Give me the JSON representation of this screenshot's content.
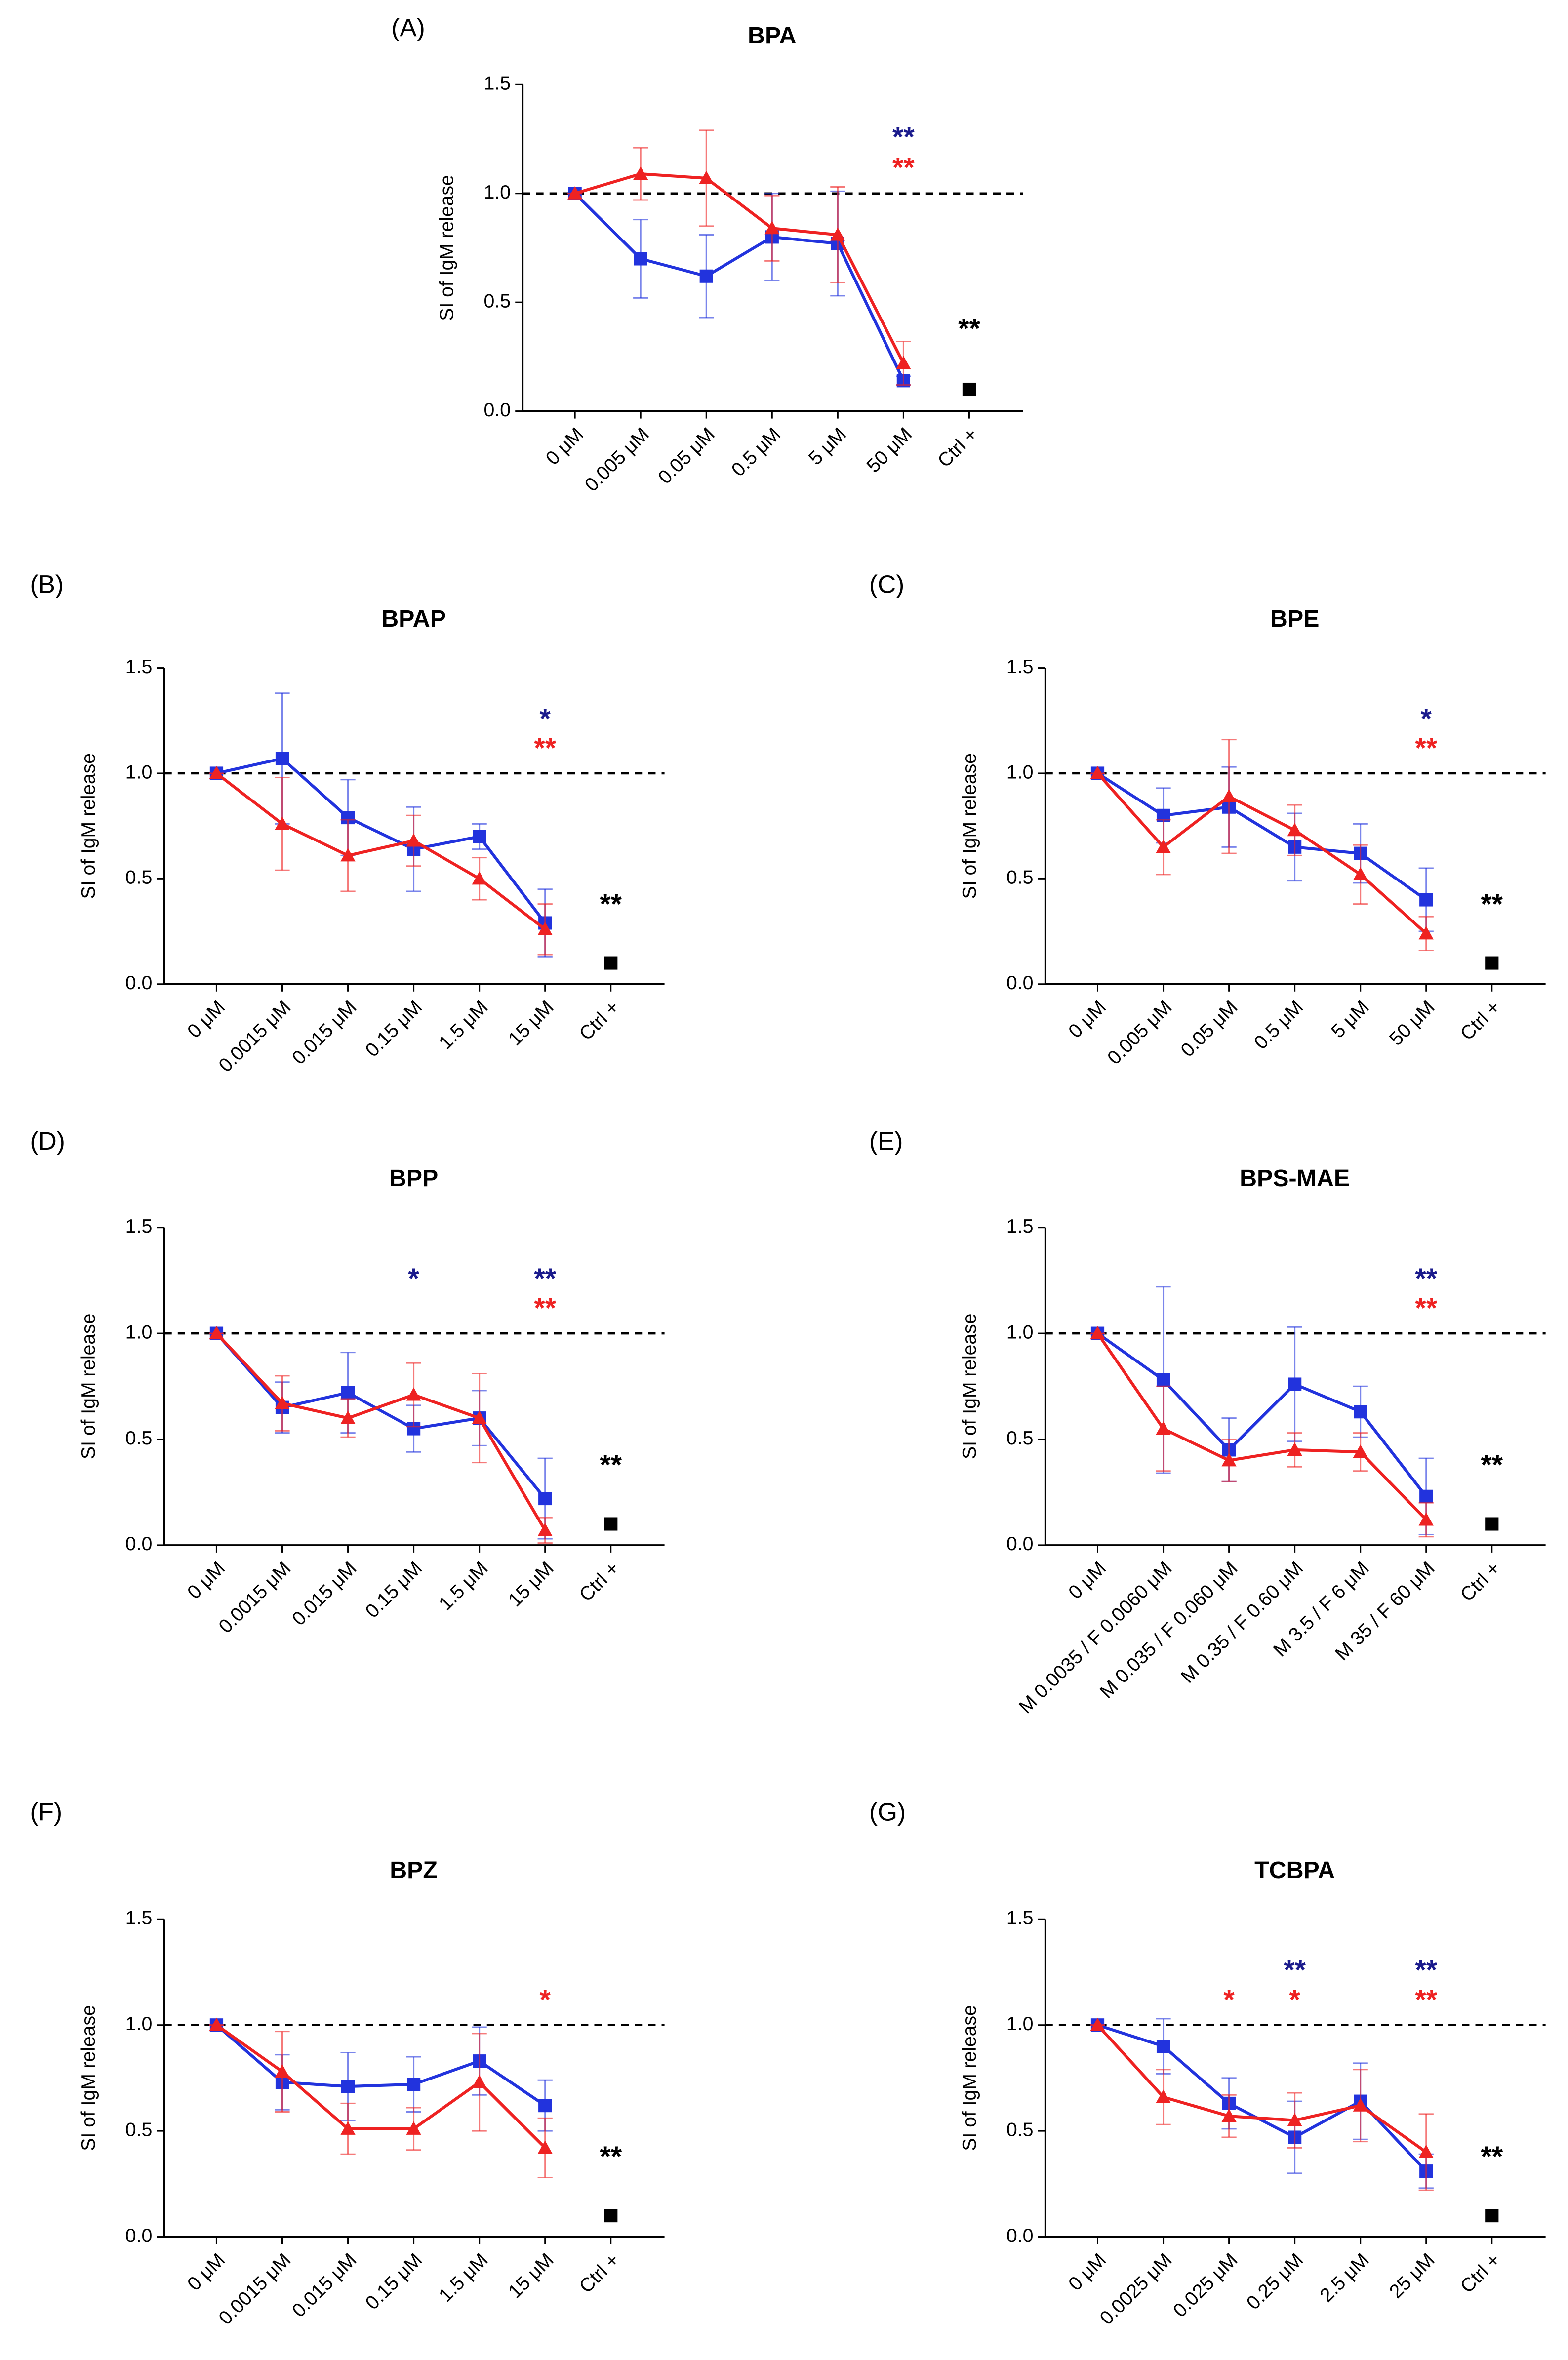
{
  "chart_data": [
    {
      "type": "line",
      "label": "(A)",
      "title": "BPA",
      "y_label": "SI of IgM release",
      "categories": [
        "0 μM",
        "0.005 μM",
        "0.05 μM",
        "0.5 μM",
        "5 μM",
        "50 μM",
        "Ctrl +"
      ],
      "ylim": [
        0,
        1.5
      ],
      "yticks": [
        {
          "value": 0,
          "label": "0.0"
        },
        0.5,
        {
          "value": 1,
          "label": "1.0"
        },
        1.5
      ],
      "reference_line": 1,
      "series": [
        {
          "color": "#2233dd",
          "star_color": "#1a1a8c",
          "marker": "square",
          "values": [
            1,
            0.7,
            0.62,
            0.8,
            0.77,
            0.14,
            null
          ],
          "errors": [
            0,
            0.18,
            0.19,
            0.2,
            0.24,
            0.02,
            null
          ],
          "significance": [
            null,
            null,
            null,
            null,
            null,
            "**",
            null
          ]
        },
        {
          "color": "#ee2222",
          "star_color": "#ee2222",
          "marker": "triangle",
          "values": [
            1,
            1.09,
            1.07,
            0.84,
            0.81,
            0.22,
            null
          ],
          "errors": [
            0,
            0.12,
            0.22,
            0.15,
            0.22,
            0.1,
            null
          ],
          "significance": [
            null,
            null,
            null,
            null,
            null,
            "**",
            null
          ]
        },
        {
          "color": "#000000",
          "star_color": "#000000",
          "marker": "square",
          "values": [
            null,
            null,
            null,
            null,
            null,
            null,
            0.1
          ],
          "significance": [
            null,
            null,
            null,
            null,
            null,
            null,
            "**"
          ]
        }
      ]
    },
    {
      "type": "line",
      "label": "(B)",
      "title": "BPAP",
      "y_label": "SI of IgM release",
      "categories": [
        "0 μM",
        "0.0015 μM",
        "0.015 μM",
        "0.15 μM",
        "1.5 μM",
        "15 μM",
        "Ctrl +"
      ],
      "ylim": [
        0,
        1.5
      ],
      "yticks": [
        {
          "value": 0,
          "label": "0.0"
        },
        0.5,
        {
          "value": 1,
          "label": "1.0"
        },
        1.5
      ],
      "reference_line": 1,
      "series": [
        {
          "color": "#2233dd",
          "star_color": "#1a1a8c",
          "marker": "square",
          "values": [
            1,
            1.07,
            0.79,
            0.64,
            0.7,
            0.29,
            null
          ],
          "errors": [
            0,
            0.31,
            0.18,
            0.2,
            0.06,
            0.16,
            null
          ],
          "significance": [
            null,
            null,
            null,
            null,
            null,
            "*",
            null
          ]
        },
        {
          "color": "#ee2222",
          "star_color": "#ee2222",
          "marker": "triangle",
          "values": [
            1,
            0.76,
            0.61,
            0.68,
            0.5,
            0.26,
            null
          ],
          "errors": [
            0,
            0.22,
            0.17,
            0.12,
            0.1,
            0.12,
            null
          ],
          "significance": [
            null,
            null,
            null,
            null,
            null,
            "**",
            null
          ]
        },
        {
          "color": "#000000",
          "star_color": "#000000",
          "marker": "square",
          "values": [
            null,
            null,
            null,
            null,
            null,
            null,
            0.1
          ],
          "significance": [
            null,
            null,
            null,
            null,
            null,
            null,
            "**"
          ]
        }
      ]
    },
    {
      "type": "line",
      "label": "(C)",
      "title": "BPE",
      "y_label": "SI of IgM release",
      "categories": [
        "0 μM",
        "0.005 μM",
        "0.05 μM",
        "0.5 μM",
        "5 μM",
        "50 μM",
        "Ctrl +"
      ],
      "ylim": [
        0,
        1.5
      ],
      "yticks": [
        {
          "value": 0,
          "label": "0.0"
        },
        0.5,
        {
          "value": 1,
          "label": "1.0"
        },
        1.5
      ],
      "reference_line": 1,
      "series": [
        {
          "color": "#2233dd",
          "star_color": "#1a1a8c",
          "marker": "square",
          "values": [
            1,
            0.8,
            0.84,
            0.65,
            0.62,
            0.4,
            null
          ],
          "errors": [
            0,
            0.13,
            0.19,
            0.16,
            0.14,
            0.15,
            null
          ],
          "significance": [
            null,
            null,
            null,
            null,
            null,
            "*",
            null
          ]
        },
        {
          "color": "#ee2222",
          "star_color": "#ee2222",
          "marker": "triangle",
          "values": [
            1,
            0.65,
            0.89,
            0.73,
            0.52,
            0.24,
            null
          ],
          "errors": [
            0,
            0.13,
            0.27,
            0.12,
            0.14,
            0.08,
            null
          ],
          "significance": [
            null,
            null,
            null,
            null,
            null,
            "**",
            null
          ]
        },
        {
          "color": "#000000",
          "star_color": "#000000",
          "marker": "square",
          "values": [
            null,
            null,
            null,
            null,
            null,
            null,
            0.1
          ],
          "significance": [
            null,
            null,
            null,
            null,
            null,
            null,
            "**"
          ]
        }
      ]
    },
    {
      "type": "line",
      "label": "(D)",
      "title": "BPP",
      "y_label": "SI of IgM release",
      "categories": [
        "0 μM",
        "0.0015 μM",
        "0.015 μM",
        "0.15 μM",
        "1.5 μM",
        "15 μM",
        "Ctrl +"
      ],
      "ylim": [
        0,
        1.5
      ],
      "yticks": [
        {
          "value": 0,
          "label": "0.0"
        },
        0.5,
        {
          "value": 1,
          "label": "1.0"
        },
        1.5
      ],
      "reference_line": 1,
      "series": [
        {
          "color": "#2233dd",
          "star_color": "#1a1a8c",
          "marker": "square",
          "values": [
            1,
            0.65,
            0.72,
            0.55,
            0.6,
            0.22,
            null
          ],
          "errors": [
            0,
            0.12,
            0.19,
            0.11,
            0.13,
            0.19,
            null
          ],
          "significance": [
            null,
            null,
            null,
            "*",
            null,
            "**",
            null
          ]
        },
        {
          "color": "#ee2222",
          "star_color": "#ee2222",
          "marker": "triangle",
          "values": [
            1,
            0.67,
            0.6,
            0.71,
            0.6,
            0.07,
            null
          ],
          "errors": [
            0,
            0.13,
            0.09,
            0.15,
            0.21,
            0.06,
            null
          ],
          "significance": [
            null,
            null,
            null,
            null,
            null,
            "**",
            null
          ]
        },
        {
          "color": "#000000",
          "star_color": "#000000",
          "marker": "square",
          "values": [
            null,
            null,
            null,
            null,
            null,
            null,
            0.1
          ],
          "significance": [
            null,
            null,
            null,
            null,
            null,
            null,
            "**"
          ]
        }
      ]
    },
    {
      "type": "line",
      "label": "(E)",
      "title": "BPS-MAE",
      "y_label": "SI of IgM release",
      "categories": [
        "0 μM",
        "M 0.0035 / F 0.0060 μM",
        "M 0.035 / F 0.060 μM",
        "M 0.35 / F 0.60 μM",
        "M 3.5 / F 6 μM",
        "M 35 / F 60 μM",
        "Ctrl +"
      ],
      "ylim": [
        0,
        1.5
      ],
      "yticks": [
        {
          "value": 0,
          "label": "0.0"
        },
        0.5,
        {
          "value": 1,
          "label": "1.0"
        },
        1.5
      ],
      "reference_line": 1,
      "series": [
        {
          "color": "#2233dd",
          "star_color": "#1a1a8c",
          "marker": "square",
          "values": [
            1,
            0.78,
            0.45,
            0.76,
            0.63,
            0.23,
            null
          ],
          "errors": [
            0,
            0.44,
            0.15,
            0.27,
            0.12,
            0.18,
            null
          ],
          "significance": [
            null,
            null,
            null,
            null,
            null,
            "**",
            null
          ]
        },
        {
          "color": "#ee2222",
          "star_color": "#ee2222",
          "marker": "triangle",
          "values": [
            1,
            0.55,
            0.4,
            0.45,
            0.44,
            0.12,
            null
          ],
          "errors": [
            0,
            0.2,
            0.1,
            0.08,
            0.09,
            0.08,
            null
          ],
          "significance": [
            null,
            null,
            null,
            null,
            null,
            "**",
            null
          ]
        },
        {
          "color": "#000000",
          "star_color": "#000000",
          "marker": "square",
          "values": [
            null,
            null,
            null,
            null,
            null,
            null,
            0.1
          ],
          "significance": [
            null,
            null,
            null,
            null,
            null,
            null,
            "**"
          ]
        }
      ]
    },
    {
      "type": "line",
      "label": "(F)",
      "title": "BPZ",
      "y_label": "SI of IgM release",
      "categories": [
        "0 μM",
        "0.0015 μM",
        "0.015 μM",
        "0.15 μM",
        "1.5 μM",
        "15 μM",
        "Ctrl +"
      ],
      "ylim": [
        0,
        1.5
      ],
      "yticks": [
        {
          "value": 0,
          "label": "0.0"
        },
        0.5,
        {
          "value": 1,
          "label": "1.0"
        },
        1.5
      ],
      "reference_line": 1,
      "series": [
        {
          "color": "#2233dd",
          "star_color": "#1a1a8c",
          "marker": "square",
          "values": [
            1,
            0.73,
            0.71,
            0.72,
            0.83,
            0.62,
            null
          ],
          "errors": [
            0,
            0.13,
            0.16,
            0.13,
            0.16,
            0.12,
            null
          ]
        },
        {
          "color": "#ee2222",
          "star_color": "#ee2222",
          "marker": "triangle",
          "values": [
            1,
            0.78,
            0.51,
            0.51,
            0.73,
            0.42,
            null
          ],
          "errors": [
            0,
            0.19,
            0.12,
            0.1,
            0.23,
            0.14,
            null
          ],
          "significance": [
            null,
            null,
            null,
            null,
            null,
            "*",
            null
          ]
        },
        {
          "color": "#000000",
          "star_color": "#000000",
          "marker": "square",
          "values": [
            null,
            null,
            null,
            null,
            null,
            null,
            0.1
          ],
          "significance": [
            null,
            null,
            null,
            null,
            null,
            null,
            "**"
          ]
        }
      ]
    },
    {
      "type": "line",
      "label": "(G)",
      "title": "TCBPA",
      "y_label": "SI of IgM release",
      "categories": [
        "0 μM",
        "0.0025 μM",
        "0.025 μM",
        "0.25 μM",
        "2.5 μM",
        "25 μM",
        "Ctrl +"
      ],
      "ylim": [
        0,
        1.5
      ],
      "yticks": [
        {
          "value": 0,
          "label": "0.0"
        },
        0.5,
        {
          "value": 1,
          "label": "1.0"
        },
        1.5
      ],
      "reference_line": 1,
      "series": [
        {
          "color": "#2233dd",
          "star_color": "#1a1a8c",
          "marker": "square",
          "values": [
            1,
            0.9,
            0.63,
            0.47,
            0.64,
            0.31,
            null
          ],
          "errors": [
            0,
            0.13,
            0.12,
            0.17,
            0.18,
            0.08,
            null
          ],
          "significance": [
            null,
            null,
            null,
            "**",
            null,
            "**",
            null
          ]
        },
        {
          "color": "#ee2222",
          "star_color": "#ee2222",
          "marker": "triangle",
          "values": [
            1,
            0.66,
            0.57,
            0.55,
            0.62,
            0.4,
            null
          ],
          "errors": [
            0,
            0.13,
            0.1,
            0.13,
            0.17,
            0.18,
            null
          ],
          "significance": [
            null,
            null,
            "*",
            "*",
            null,
            "**",
            null
          ]
        },
        {
          "color": "#000000",
          "star_color": "#000000",
          "marker": "square",
          "values": [
            null,
            null,
            null,
            null,
            null,
            null,
            0.1
          ],
          "significance": [
            null,
            null,
            null,
            null,
            null,
            null,
            "**"
          ]
        }
      ]
    }
  ]
}
